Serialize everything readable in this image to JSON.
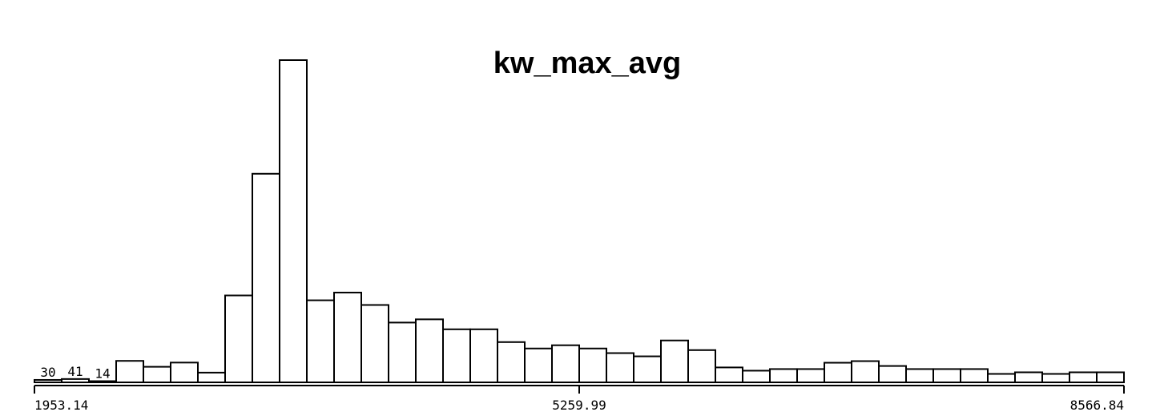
{
  "chart_data": {
    "type": "bar",
    "title": "kw_max_avg",
    "xlabel": "",
    "ylabel": "",
    "x_ticks": [
      "1953.14",
      "5259.99",
      "8566.84"
    ],
    "x_range": [
      1953.14,
      8566.84
    ],
    "bin_count": 40,
    "values": [
      30,
      41,
      14,
      265,
      192,
      244,
      120,
      1073,
      2575,
      3978,
      1013,
      1108,
      955,
      738,
      778,
      655,
      655,
      497,
      418,
      458,
      418,
      361,
      321,
      517,
      398,
      184,
      144,
      164,
      164,
      242,
      262,
      202,
      164,
      164,
      164,
      104,
      124,
      104,
      124,
      124
    ],
    "data_labels": [
      {
        "bin": 0,
        "text": "30"
      },
      {
        "bin": 1,
        "text": "41"
      },
      {
        "bin": 2,
        "text": "14"
      }
    ],
    "grid": false,
    "legend": "none"
  }
}
